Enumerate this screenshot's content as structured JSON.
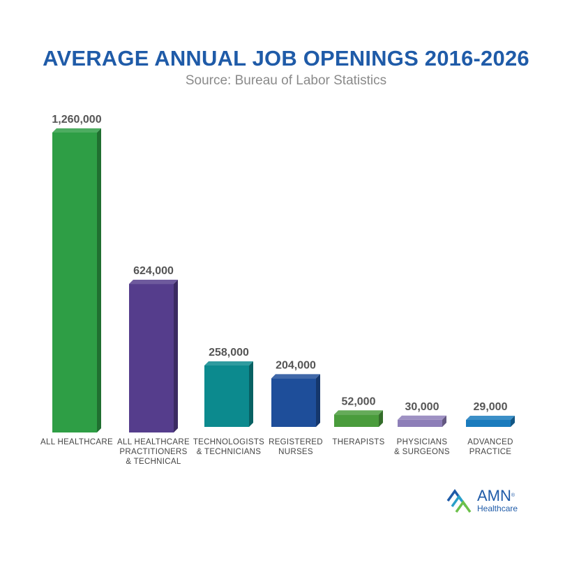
{
  "title": "AVERAGE ANNUAL JOB OPENINGS 2016-2026",
  "subtitle": "Source: Bureau of Labor Statistics",
  "logo": {
    "name": "AMN",
    "reg": "®",
    "tagline": "Healthcare"
  },
  "chart_data": {
    "type": "bar",
    "title": "AVERAGE ANNUAL JOB OPENINGS 2016-2026",
    "subtitle": "Source: Bureau of Labor Statistics",
    "categories": [
      [
        "ALL HEALTHCARE"
      ],
      [
        "ALL HEALTHCARE",
        "PRACTITIONERS",
        "& TECHNICAL"
      ],
      [
        "TECHNOLOGISTS",
        "& TECHNICIANS"
      ],
      [
        "REGISTERED",
        "NURSES"
      ],
      [
        "THERAPISTS"
      ],
      [
        "PHYSICIANS",
        "& SURGEONS"
      ],
      [
        "ADVANCED",
        "PRACTICE"
      ]
    ],
    "values": [
      1260000,
      624000,
      258000,
      204000,
      52000,
      30000,
      29000
    ],
    "value_labels": [
      "1,260,000",
      "624,000",
      "258,000",
      "204,000",
      "52,000",
      "30,000",
      "29,000"
    ],
    "colors": [
      "#2e9e45",
      "#553d8c",
      "#0c8a8e",
      "#1e4e9a",
      "#4a9c3c",
      "#8d7eb8",
      "#1a7bbd"
    ],
    "grid": false,
    "legend": "none"
  }
}
